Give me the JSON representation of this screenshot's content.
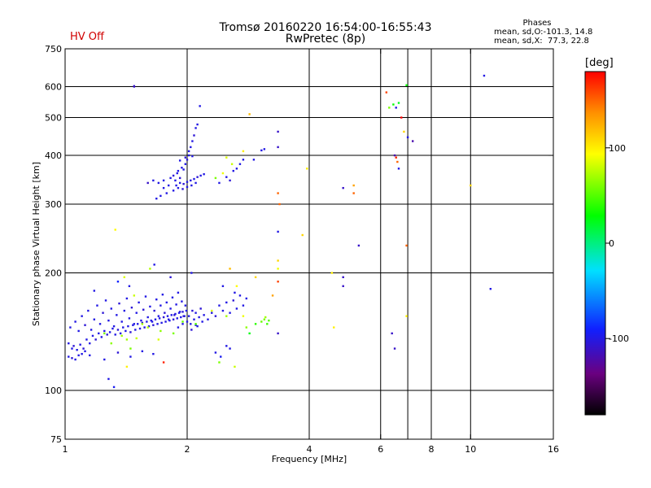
{
  "header": {
    "title_line1": "Tromsø 20160220 16:54:00-16:55:43",
    "title_line2": "RwPretec (8p)",
    "hv_status": "HV Off",
    "hv_color": "#d00000"
  },
  "phases_box": {
    "heading": "Phases",
    "line_o": "mean, sd,O:-101.3, 14.8",
    "line_x": "mean, sd,X:  77.3, 22.8"
  },
  "colorbar": {
    "unit_label": "[deg]",
    "ticks": [
      "100",
      "0",
      "-100"
    ],
    "tick_values": [
      100,
      0,
      -100
    ],
    "range": [
      -180,
      180
    ]
  },
  "chart_data": {
    "type": "scatter",
    "title": "Tromsø 20160220 16:54:00-16:55:43",
    "subtitle": "RwPretec (8p)",
    "xlabel": "Frequency [MHz]",
    "ylabel": "Stationary phase Virtual Height [km]",
    "xscale": "log",
    "yscale": "log",
    "xlim": [
      1,
      16
    ],
    "ylim": [
      75,
      750
    ],
    "xticks": [
      {
        "v": 1,
        "label": "1"
      },
      {
        "v": 2,
        "label": "2"
      },
      {
        "v": 4,
        "label": "4"
      },
      {
        "v": 6,
        "label": "6"
      },
      {
        "v": 8,
        "label": "8"
      },
      {
        "v": 10,
        "label": "10"
      },
      {
        "v": 16,
        "label": "16"
      }
    ],
    "xgrid": [
      2,
      4,
      6,
      7,
      8,
      10
    ],
    "yticks": [
      {
        "v": 75,
        "label": "75"
      },
      {
        "v": 100,
        "label": "100"
      },
      {
        "v": 200,
        "label": "200"
      },
      {
        "v": 300,
        "label": "300"
      },
      {
        "v": 400,
        "label": "400"
      },
      {
        "v": 500,
        "label": "500"
      },
      {
        "v": 600,
        "label": "600"
      },
      {
        "v": 750,
        "label": "750"
      }
    ],
    "ygrid": [
      100,
      200,
      300,
      400,
      500,
      600
    ],
    "grid": true,
    "points": [
      [
        1.02,
        132,
        -100
      ],
      [
        1.04,
        128,
        -100
      ],
      [
        1.05,
        130,
        -105
      ],
      [
        1.07,
        127,
        -100
      ],
      [
        1.09,
        131,
        -100
      ],
      [
        1.11,
        128,
        -105
      ],
      [
        1.13,
        135,
        -100
      ],
      [
        1.15,
        132,
        -100
      ],
      [
        1.17,
        138,
        -100
      ],
      [
        1.19,
        135,
        -105
      ],
      [
        1.21,
        140,
        -100
      ],
      [
        1.23,
        137,
        -100
      ],
      [
        1.25,
        142,
        -100
      ],
      [
        1.27,
        139,
        -105
      ],
      [
        1.29,
        141,
        -100
      ],
      [
        1.31,
        144,
        -100
      ],
      [
        1.33,
        139,
        -100
      ],
      [
        1.35,
        143,
        -105
      ],
      [
        1.37,
        140,
        -100
      ],
      [
        1.39,
        145,
        -100
      ],
      [
        1.41,
        142,
        -100
      ],
      [
        1.43,
        146,
        -100
      ],
      [
        1.45,
        141,
        -105
      ],
      [
        1.47,
        147,
        -100
      ],
      [
        1.49,
        143,
        -100
      ],
      [
        1.51,
        148,
        -100
      ],
      [
        1.53,
        144,
        -100
      ],
      [
        1.55,
        149,
        -105
      ],
      [
        1.57,
        145,
        -100
      ],
      [
        1.59,
        150,
        -100
      ],
      [
        1.61,
        146,
        -100
      ],
      [
        1.63,
        151,
        -100
      ],
      [
        1.65,
        147,
        -105
      ],
      [
        1.67,
        152,
        -100
      ],
      [
        1.69,
        148,
        -100
      ],
      [
        1.71,
        153,
        -100
      ],
      [
        1.73,
        149,
        -100
      ],
      [
        1.75,
        154,
        -105
      ],
      [
        1.77,
        150,
        -100
      ],
      [
        1.79,
        155,
        -100
      ],
      [
        1.81,
        151,
        -100
      ],
      [
        1.83,
        156,
        -100
      ],
      [
        1.85,
        152,
        -105
      ],
      [
        1.87,
        157,
        -100
      ],
      [
        1.89,
        153,
        -100
      ],
      [
        1.91,
        158,
        -100
      ],
      [
        1.93,
        154,
        -100
      ],
      [
        1.95,
        159,
        -105
      ],
      [
        1.97,
        155,
        -100
      ],
      [
        1.99,
        160,
        -100
      ],
      [
        1.03,
        145,
        -100
      ],
      [
        1.06,
        150,
        -100
      ],
      [
        1.08,
        142,
        -100
      ],
      [
        1.1,
        155,
        -100
      ],
      [
        1.12,
        147,
        -105
      ],
      [
        1.14,
        160,
        -100
      ],
      [
        1.16,
        143,
        -100
      ],
      [
        1.18,
        152,
        -100
      ],
      [
        1.2,
        165,
        -100
      ],
      [
        1.22,
        148,
        -100
      ],
      [
        1.24,
        158,
        -105
      ],
      [
        1.26,
        170,
        -100
      ],
      [
        1.28,
        151,
        -100
      ],
      [
        1.3,
        162,
        -100
      ],
      [
        1.32,
        146,
        -100
      ],
      [
        1.34,
        156,
        -100
      ],
      [
        1.36,
        167,
        -105
      ],
      [
        1.38,
        150,
        -100
      ],
      [
        1.4,
        160,
        -100
      ],
      [
        1.42,
        172,
        -100
      ],
      [
        1.44,
        153,
        -100
      ],
      [
        1.46,
        163,
        -105
      ],
      [
        1.48,
        148,
        -100
      ],
      [
        1.5,
        158,
        -100
      ],
      [
        1.52,
        168,
        -100
      ],
      [
        1.54,
        151,
        -100
      ],
      [
        1.56,
        161,
        -105
      ],
      [
        1.58,
        174,
        -100
      ],
      [
        1.6,
        154,
        -100
      ],
      [
        1.62,
        164,
        -100
      ],
      [
        1.64,
        150,
        -100
      ],
      [
        1.66,
        160,
        -105
      ],
      [
        1.68,
        171,
        -100
      ],
      [
        1.7,
        155,
        -100
      ],
      [
        1.72,
        165,
        -100
      ],
      [
        1.74,
        176,
        -100
      ],
      [
        1.76,
        158,
        -105
      ],
      [
        1.78,
        168,
        -100
      ],
      [
        1.8,
        152,
        -100
      ],
      [
        1.82,
        162,
        -100
      ],
      [
        1.84,
        173,
        -100
      ],
      [
        1.86,
        156,
        -105
      ],
      [
        1.88,
        166,
        -100
      ],
      [
        1.9,
        178,
        -100
      ],
      [
        1.92,
        159,
        -100
      ],
      [
        1.94,
        169,
        -100
      ],
      [
        1.96,
        155,
        -105
      ],
      [
        1.98,
        165,
        -100
      ],
      [
        2.0,
        150,
        -100
      ],
      [
        2.02,
        155,
        -100
      ],
      [
        2.04,
        148,
        -100
      ],
      [
        2.06,
        160,
        -105
      ],
      [
        2.08,
        152,
        -100
      ],
      [
        2.1,
        158,
        -100
      ],
      [
        2.12,
        146,
        -100
      ],
      [
        2.14,
        154,
        -100
      ],
      [
        2.16,
        162,
        -105
      ],
      [
        2.18,
        150,
        -100
      ],
      [
        2.2,
        156,
        -100
      ],
      [
        2.25,
        152,
        -100
      ],
      [
        2.3,
        158,
        -100
      ],
      [
        2.35,
        155,
        -105
      ],
      [
        2.4,
        165,
        -100
      ],
      [
        2.45,
        160,
        -100
      ],
      [
        2.5,
        168,
        -100
      ],
      [
        2.55,
        158,
        -100
      ],
      [
        2.6,
        170,
        -105
      ],
      [
        2.65,
        162,
        -100
      ],
      [
        2.7,
        175,
        -100
      ],
      [
        2.75,
        165,
        -100
      ],
      [
        2.8,
        172,
        -100
      ],
      [
        1.9,
        145,
        -100
      ],
      [
        1.95,
        148,
        -100
      ],
      [
        2.05,
        143,
        -105
      ],
      [
        2.1,
        147,
        -100
      ],
      [
        1.15,
        123,
        -100
      ],
      [
        1.25,
        120,
        -100
      ],
      [
        1.35,
        125,
        -105
      ],
      [
        1.45,
        122,
        -100
      ],
      [
        1.55,
        126,
        -100
      ],
      [
        1.65,
        124,
        -100
      ],
      [
        1.02,
        122,
        -100
      ],
      [
        1.04,
        121,
        -105
      ],
      [
        1.06,
        120,
        -100
      ],
      [
        1.08,
        123,
        -100
      ],
      [
        1.1,
        124,
        -100
      ],
      [
        1.12,
        126,
        -100
      ],
      [
        1.28,
        107,
        -100
      ],
      [
        1.32,
        102,
        -95
      ],
      [
        1.18,
        180,
        -100
      ],
      [
        1.35,
        190,
        -90
      ],
      [
        1.44,
        185,
        -100
      ],
      [
        1.82,
        195,
        -105
      ],
      [
        1.66,
        210,
        -100
      ],
      [
        2.05,
        200,
        -100
      ],
      [
        2.45,
        185,
        -100
      ],
      [
        2.62,
        178,
        -100
      ],
      [
        2.35,
        125,
        -100
      ],
      [
        2.42,
        122,
        -95
      ],
      [
        2.5,
        130,
        -100
      ],
      [
        2.55,
        128,
        -100
      ],
      [
        1.25,
        140,
        60
      ],
      [
        1.38,
        138,
        70
      ],
      [
        1.5,
        136,
        80
      ],
      [
        1.6,
        145,
        75
      ],
      [
        1.72,
        142,
        65
      ],
      [
        1.85,
        140,
        60
      ],
      [
        1.95,
        150,
        55
      ],
      [
        2.1,
        148,
        50
      ],
      [
        2.3,
        160,
        85
      ],
      [
        2.5,
        155,
        70
      ],
      [
        2.8,
        145,
        65
      ],
      [
        2.95,
        148,
        40
      ],
      [
        3.05,
        150,
        55
      ],
      [
        3.1,
        152,
        60
      ],
      [
        3.15,
        148,
        45
      ],
      [
        3.12,
        154,
        70
      ],
      [
        3.18,
        151,
        50
      ],
      [
        2.85,
        140,
        25
      ],
      [
        2.75,
        155,
        90
      ],
      [
        1.48,
        175,
        80
      ],
      [
        1.62,
        205,
        75
      ],
      [
        1.4,
        195,
        85
      ],
      [
        1.33,
        258,
        95
      ],
      [
        2.55,
        205,
        120
      ],
      [
        2.65,
        185,
        95
      ],
      [
        2.95,
        195,
        110
      ],
      [
        3.25,
        175,
        130
      ],
      [
        1.45,
        128,
        60
      ],
      [
        1.55,
        148,
        70
      ],
      [
        1.7,
        135,
        85
      ],
      [
        1.42,
        135,
        70
      ],
      [
        1.3,
        132,
        65
      ],
      [
        1.48,
        602,
        -110
      ],
      [
        1.48,
        600,
        -110
      ],
      [
        1.65,
        345,
        -100
      ],
      [
        1.7,
        340,
        -100
      ],
      [
        1.75,
        345,
        -100
      ],
      [
        1.8,
        335,
        -100
      ],
      [
        1.82,
        350,
        -100
      ],
      [
        1.85,
        355,
        -105
      ],
      [
        1.87,
        345,
        -100
      ],
      [
        1.89,
        360,
        -100
      ],
      [
        1.9,
        365,
        -100
      ],
      [
        1.92,
        350,
        -105
      ],
      [
        1.94,
        372,
        -100
      ],
      [
        1.96,
        368,
        -100
      ],
      [
        1.98,
        380,
        -100
      ],
      [
        2.0,
        390,
        -105
      ],
      [
        2.02,
        410,
        -100
      ],
      [
        2.04,
        420,
        -100
      ],
      [
        2.06,
        435,
        -100
      ],
      [
        2.08,
        450,
        -105
      ],
      [
        2.1,
        470,
        -100
      ],
      [
        2.12,
        480,
        -100
      ],
      [
        1.88,
        335,
        -100
      ],
      [
        1.92,
        340,
        -100
      ],
      [
        1.96,
        338,
        -105
      ],
      [
        2.0,
        342,
        -100
      ],
      [
        2.04,
        345,
        -100
      ],
      [
        2.08,
        348,
        -100
      ],
      [
        2.12,
        352,
        -105
      ],
      [
        2.16,
        355,
        -100
      ],
      [
        2.2,
        358,
        -100
      ],
      [
        1.85,
        325,
        -100
      ],
      [
        1.9,
        330,
        -100
      ],
      [
        1.95,
        328,
        -105
      ],
      [
        2.0,
        332,
        -100
      ],
      [
        2.05,
        335,
        -100
      ],
      [
        2.1,
        340,
        -100
      ],
      [
        1.92,
        388,
        -100
      ],
      [
        1.98,
        395,
        -105
      ],
      [
        2.02,
        400,
        -100
      ],
      [
        2.06,
        398,
        -100
      ],
      [
        1.75,
        330,
        -100
      ],
      [
        1.78,
        320,
        -100
      ],
      [
        1.6,
        340,
        -110
      ],
      [
        1.72,
        315,
        -100
      ],
      [
        1.68,
        310,
        -100
      ],
      [
        2.15,
        535,
        -100
      ],
      [
        2.4,
        340,
        -100
      ],
      [
        2.5,
        352,
        -100
      ],
      [
        2.6,
        365,
        -100
      ],
      [
        2.65,
        370,
        -100
      ],
      [
        2.7,
        380,
        -100
      ],
      [
        2.75,
        390,
        -100
      ],
      [
        2.55,
        345,
        -105
      ],
      [
        2.45,
        360,
        90
      ],
      [
        2.58,
        380,
        80
      ],
      [
        2.35,
        350,
        60
      ],
      [
        2.5,
        395,
        85
      ],
      [
        2.75,
        410,
        100
      ],
      [
        2.85,
        510,
        120
      ],
      [
        2.92,
        390,
        -100
      ],
      [
        3.05,
        412,
        -100
      ],
      [
        3.1,
        415,
        -100
      ],
      [
        3.35,
        460,
        -110
      ],
      [
        3.35,
        420,
        -110
      ],
      [
        3.35,
        320,
        150
      ],
      [
        3.38,
        300,
        150
      ],
      [
        3.35,
        255,
        -100
      ],
      [
        3.35,
        190,
        160
      ],
      [
        3.35,
        215,
        110
      ],
      [
        3.35,
        205,
        90
      ],
      [
        3.35,
        140,
        -110
      ],
      [
        3.85,
        250,
        110
      ],
      [
        3.95,
        370,
        100
      ],
      [
        4.55,
        200,
        100
      ],
      [
        4.6,
        145,
        100
      ],
      [
        4.85,
        330,
        -110
      ],
      [
        4.85,
        195,
        -110
      ],
      [
        4.85,
        185,
        -110
      ],
      [
        5.15,
        320,
        150
      ],
      [
        5.15,
        335,
        130
      ],
      [
        5.3,
        235,
        -110
      ],
      [
        6.2,
        580,
        160
      ],
      [
        6.3,
        530,
        60
      ],
      [
        6.45,
        540,
        30
      ],
      [
        6.55,
        530,
        -100
      ],
      [
        6.65,
        545,
        20
      ],
      [
        6.75,
        500,
        180
      ],
      [
        6.85,
        460,
        110
      ],
      [
        6.95,
        605,
        30
      ],
      [
        6.5,
        400,
        -120
      ],
      [
        6.55,
        395,
        170
      ],
      [
        6.6,
        385,
        150
      ],
      [
        6.65,
        370,
        -100
      ],
      [
        7.0,
        445,
        -100
      ],
      [
        7.2,
        435,
        -120
      ],
      [
        6.95,
        235,
        150
      ],
      [
        6.95,
        155,
        100
      ],
      [
        6.4,
        140,
        -110
      ],
      [
        6.5,
        128,
        -110
      ],
      [
        10.0,
        335,
        110
      ],
      [
        10.8,
        640,
        -100
      ],
      [
        11.2,
        182,
        -100
      ],
      [
        1.75,
        118,
        170
      ],
      [
        1.42,
        115,
        100
      ],
      [
        2.4,
        118,
        60
      ],
      [
        2.62,
        115,
        80
      ]
    ]
  }
}
